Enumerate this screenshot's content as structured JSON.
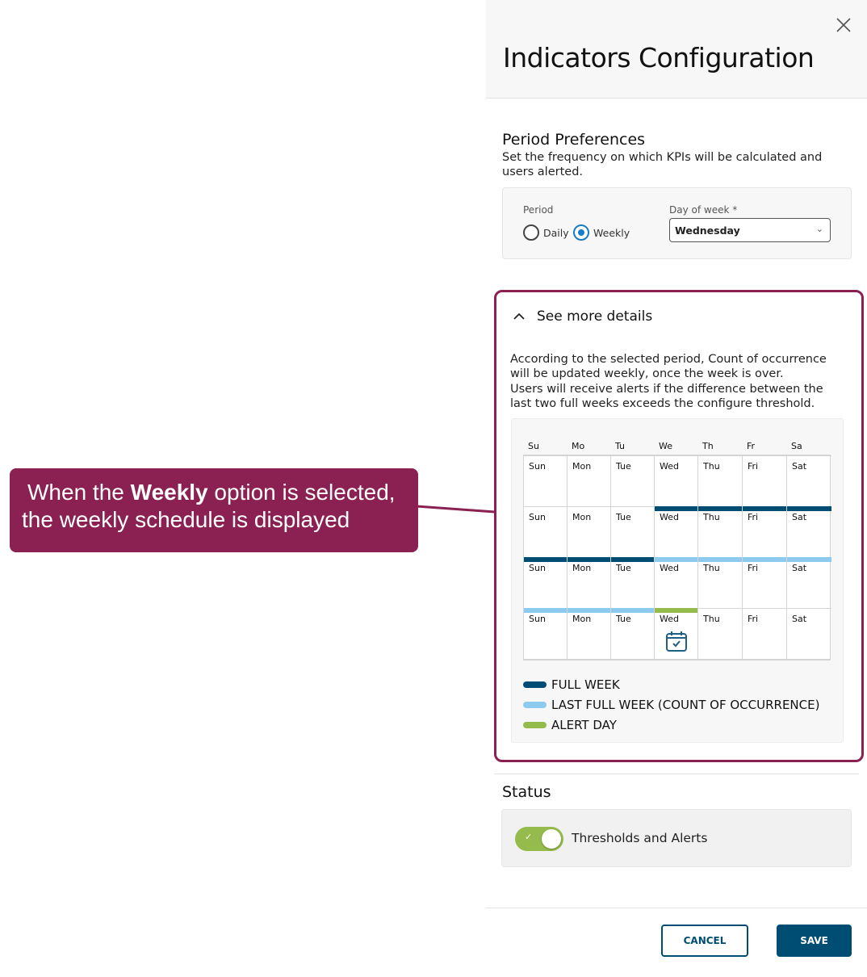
{
  "header": {
    "title": "Indicators Configuration",
    "close_icon": "close-icon"
  },
  "period_preferences": {
    "title": "Period Preferences",
    "description": "Set the frequency on which KPIs will be calculated and users alerted.",
    "period_label": "Period",
    "options": [
      {
        "label": "Daily",
        "selected": false
      },
      {
        "label": "Weekly",
        "selected": true
      }
    ],
    "day_of_week_label": "Day of week *",
    "day_of_week_value": "Wednesday"
  },
  "details": {
    "toggle_label": "See more details",
    "text1": "According to the selected period, Count of occurrence will be updated weekly, once the week is over.",
    "text2": "Users will receive alerts if the difference between the last two full weeks exceeds the configure threshold.",
    "calendar": {
      "headers": [
        "Su",
        "Mo",
        "Tu",
        "We",
        "Th",
        "Fr",
        "Sa"
      ],
      "days": [
        "Sun",
        "Mon",
        "Tue",
        "Wed",
        "Thu",
        "Fri",
        "Sat"
      ],
      "markers": [
        [
          null,
          null,
          null,
          null,
          null,
          null,
          null
        ],
        [
          null,
          null,
          null,
          "full",
          "full",
          "full",
          "full"
        ],
        [
          "full",
          "full",
          "full",
          "last",
          "last",
          "last",
          "last"
        ],
        [
          "last",
          "last",
          "last",
          "alert",
          null,
          null,
          null
        ]
      ],
      "alert_icon": "calendar-check-icon"
    },
    "legend": [
      {
        "key": "full",
        "label": "FULL WEEK",
        "color": "#004d73"
      },
      {
        "key": "last",
        "label": "LAST FULL WEEK (COUNT OF OCCURRENCE)",
        "color": "#8ccbee"
      },
      {
        "key": "alert",
        "label": "ALERT DAY",
        "color": "#96bb4d"
      }
    ]
  },
  "status": {
    "title": "Status",
    "toggle_label": "Thresholds and Alerts",
    "toggle_on": true
  },
  "footer": {
    "cancel": "CANCEL",
    "save": "SAVE"
  },
  "callout": {
    "pre": "When the ",
    "bold": "Weekly",
    "post": " option is selected,",
    "line2": "the weekly schedule is displayed"
  },
  "colors": {
    "accent": "#004d73",
    "callout": "#8a2152",
    "toggle": "#96bb4d",
    "radio": "#1a7dc4"
  }
}
